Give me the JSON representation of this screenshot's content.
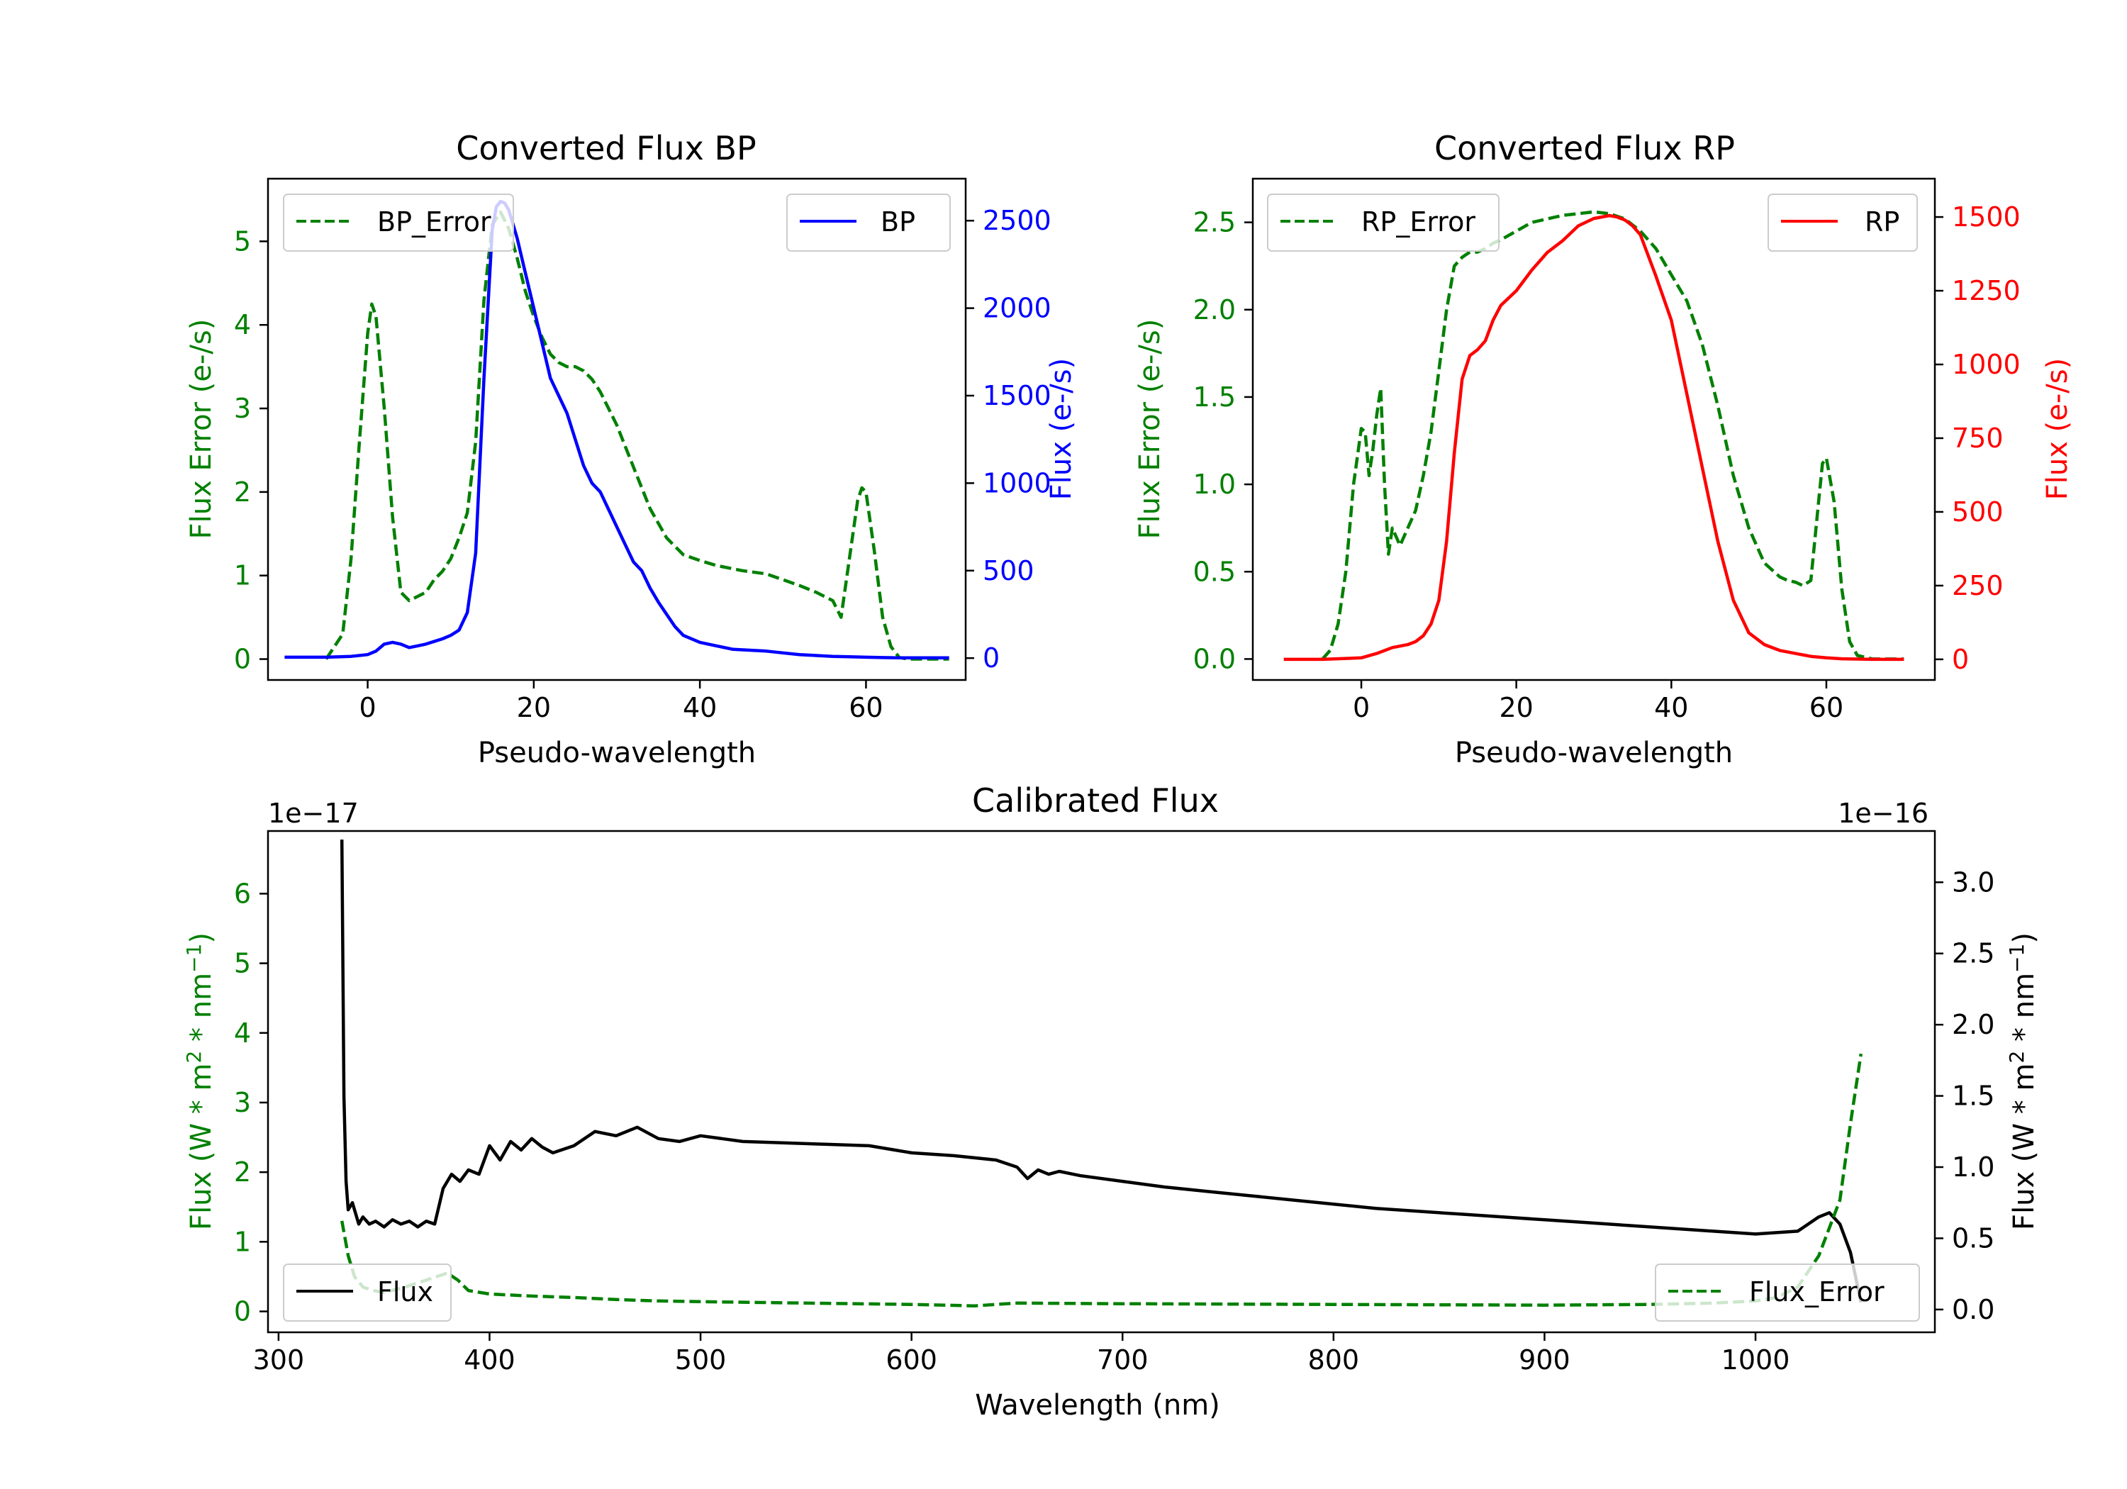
{
  "chart_data": [
    {
      "id": "bp",
      "type": "line",
      "title": "Converted Flux BP",
      "xlabel": "Pseudo-wavelength",
      "ylabel_left": "Flux Error (e-/s)",
      "ylabel_right": "Flux (e-/s)",
      "xlim": [
        -12,
        72
      ],
      "ylim_left": [
        -0.25,
        5.75
      ],
      "ylim_right": [
        -125,
        2740
      ],
      "xticks": [
        0,
        20,
        40,
        60
      ],
      "yticks_left": [
        0,
        1,
        2,
        3,
        4,
        5
      ],
      "yticks_right": [
        0,
        500,
        1000,
        1500,
        2000,
        2500
      ],
      "left_color": "#008000",
      "right_color": "#0000ff",
      "series": [
        {
          "name": "BP_Error",
          "axis": "left",
          "style": "dashed",
          "color": "#008000",
          "legend": "top-left",
          "x": [
            -5,
            -3,
            -2,
            -1,
            0,
            0.5,
            1,
            2,
            3,
            4,
            5,
            6,
            7,
            8,
            9,
            10,
            11,
            12,
            13,
            14,
            15,
            16,
            17,
            18,
            19,
            20,
            21,
            22,
            23,
            24,
            25,
            26,
            27,
            28,
            29,
            30,
            31,
            32,
            34,
            36,
            38,
            40,
            42,
            45,
            48,
            50,
            52,
            54,
            56,
            57,
            58,
            59,
            59.5,
            60,
            61,
            62,
            63,
            64,
            65,
            67,
            70
          ],
          "y": [
            0.0,
            0.3,
            1.2,
            2.6,
            3.9,
            4.25,
            4.1,
            3.0,
            1.7,
            0.8,
            0.7,
            0.75,
            0.8,
            0.95,
            1.05,
            1.2,
            1.45,
            1.75,
            2.6,
            4.3,
            5.2,
            5.35,
            5.15,
            4.8,
            4.4,
            4.1,
            3.85,
            3.65,
            3.55,
            3.5,
            3.5,
            3.45,
            3.35,
            3.2,
            3.0,
            2.8,
            2.55,
            2.3,
            1.8,
            1.45,
            1.25,
            1.18,
            1.12,
            1.06,
            1.02,
            0.95,
            0.88,
            0.8,
            0.7,
            0.5,
            1.2,
            1.9,
            2.05,
            2.0,
            1.3,
            0.5,
            0.15,
            0.02,
            0.0,
            0.0,
            0.0
          ]
        },
        {
          "name": "BP",
          "axis": "right",
          "style": "solid",
          "color": "#0000ff",
          "legend": "top-right",
          "x": [
            -10,
            -5,
            -2,
            0,
            1,
            2,
            3,
            4,
            5,
            6,
            7,
            8,
            9,
            10,
            11,
            12,
            13,
            14,
            15,
            15.5,
            16,
            16.5,
            17,
            18,
            19,
            20,
            21,
            22,
            23,
            24,
            25,
            26,
            27,
            28,
            29,
            30,
            31,
            32,
            33,
            34,
            35,
            36,
            37,
            38,
            40,
            42,
            44,
            46,
            48,
            50,
            52,
            54,
            56,
            58,
            60,
            62,
            64,
            66,
            68,
            70
          ],
          "y": [
            5,
            5,
            10,
            20,
            40,
            80,
            90,
            80,
            60,
            70,
            80,
            95,
            110,
            130,
            160,
            260,
            600,
            1600,
            2450,
            2580,
            2610,
            2600,
            2560,
            2400,
            2200,
            2000,
            1800,
            1600,
            1500,
            1400,
            1250,
            1100,
            1000,
            950,
            850,
            750,
            650,
            550,
            500,
            400,
            320,
            250,
            180,
            130,
            90,
            70,
            50,
            45,
            40,
            30,
            20,
            15,
            10,
            8,
            5,
            3,
            2,
            2,
            2,
            2
          ]
        }
      ]
    },
    {
      "id": "rp",
      "type": "line",
      "title": "Converted Flux RP",
      "xlabel": "Pseudo-wavelength",
      "ylabel_left": "Flux Error (e-/s)",
      "ylabel_right": "Flux (e-/s)",
      "xlim": [
        -14,
        74
      ],
      "ylim_left": [
        -0.12,
        2.75
      ],
      "ylim_right": [
        -70,
        1630
      ],
      "xticks": [
        0,
        20,
        40,
        60
      ],
      "yticks_left": [
        0.0,
        0.5,
        1.0,
        1.5,
        2.0,
        2.5
      ],
      "yticks_right": [
        0,
        250,
        500,
        750,
        1000,
        1250,
        1500
      ],
      "left_color": "#008000",
      "right_color": "#ff0000",
      "series": [
        {
          "name": "RP_Error",
          "axis": "left",
          "style": "dashed",
          "color": "#008000",
          "legend": "top-left",
          "x": [
            -5,
            -4,
            -3,
            -2,
            -1,
            0,
            0.5,
            1,
            1.5,
            2,
            2.5,
            3,
            3.5,
            4,
            4.5,
            5,
            6,
            7,
            8,
            9,
            10,
            11,
            12,
            13,
            14,
            15,
            16,
            17,
            18,
            20,
            22,
            24,
            26,
            28,
            30,
            32,
            34,
            36,
            38,
            40,
            42,
            44,
            46,
            48,
            50,
            52,
            54,
            55,
            56,
            57,
            58,
            59,
            59.5,
            60,
            61,
            62,
            63,
            64,
            66,
            70
          ],
          "y": [
            0.0,
            0.05,
            0.2,
            0.5,
            1.0,
            1.32,
            1.3,
            1.05,
            1.2,
            1.4,
            1.55,
            1.0,
            0.6,
            0.75,
            0.7,
            0.65,
            0.75,
            0.85,
            1.05,
            1.3,
            1.65,
            2.0,
            2.25,
            2.3,
            2.33,
            2.33,
            2.35,
            2.38,
            2.4,
            2.45,
            2.5,
            2.52,
            2.54,
            2.55,
            2.56,
            2.55,
            2.52,
            2.45,
            2.35,
            2.2,
            2.05,
            1.8,
            1.45,
            1.05,
            0.75,
            0.55,
            0.47,
            0.45,
            0.44,
            0.42,
            0.45,
            0.9,
            1.12,
            1.15,
            0.9,
            0.4,
            0.1,
            0.02,
            0.0,
            0.0
          ]
        },
        {
          "name": "RP",
          "axis": "right",
          "style": "solid",
          "color": "#ff0000",
          "legend": "top-right",
          "x": [
            -10,
            -5,
            0,
            2,
            4,
            6,
            7,
            8,
            9,
            10,
            11,
            12,
            13,
            14,
            15,
            16,
            17,
            18,
            20,
            22,
            24,
            26,
            28,
            30,
            31,
            32,
            33,
            34,
            35,
            36,
            38,
            40,
            42,
            44,
            46,
            48,
            50,
            52,
            54,
            56,
            58,
            60,
            62,
            64,
            66,
            70
          ],
          "y": [
            0,
            0,
            5,
            20,
            40,
            50,
            60,
            80,
            120,
            200,
            400,
            700,
            950,
            1030,
            1050,
            1080,
            1150,
            1200,
            1250,
            1320,
            1380,
            1420,
            1470,
            1495,
            1500,
            1505,
            1500,
            1490,
            1470,
            1440,
            1300,
            1150,
            900,
            650,
            400,
            200,
            90,
            50,
            30,
            20,
            10,
            5,
            2,
            1,
            0,
            0
          ]
        }
      ]
    },
    {
      "id": "cal",
      "type": "line",
      "title": "Calibrated Flux",
      "xlabel": "Wavelength (nm)",
      "ylabel_left": "Flux (W * m$^2$ * nm$^{-1}$)",
      "ylabel_right": "Flux (W * m$^2$ * nm$^{-1}$)",
      "left_offset": "1e−17",
      "right_offset": "1e−16",
      "xlim": [
        295,
        1085
      ],
      "ylim_left": [
        -0.3,
        6.9
      ],
      "ylim_right": [
        -0.16,
        3.36
      ],
      "xticks": [
        300,
        400,
        500,
        600,
        700,
        800,
        900,
        1000
      ],
      "yticks_left": [
        0,
        1,
        2,
        3,
        4,
        5,
        6
      ],
      "yticks_right": [
        0.0,
        0.5,
        1.0,
        1.5,
        2.0,
        2.5,
        3.0
      ],
      "left_color": "#008000",
      "right_color": "#000000",
      "series": [
        {
          "name": "Flux",
          "axis": "right",
          "style": "solid",
          "color": "#000000",
          "legend": "bottom-left",
          "x": [
            330,
            331,
            332,
            333,
            335,
            338,
            340,
            343,
            346,
            350,
            354,
            358,
            362,
            366,
            370,
            374,
            378,
            382,
            386,
            390,
            395,
            400,
            405,
            410,
            415,
            420,
            425,
            430,
            440,
            450,
            460,
            470,
            480,
            490,
            500,
            510,
            520,
            540,
            560,
            580,
            600,
            620,
            640,
            650,
            655,
            660,
            665,
            670,
            680,
            700,
            720,
            740,
            760,
            780,
            800,
            820,
            840,
            860,
            880,
            900,
            920,
            940,
            960,
            980,
            1000,
            1020,
            1030,
            1035,
            1040,
            1045,
            1050
          ],
          "y": [
            3.3,
            1.5,
            0.9,
            0.7,
            0.75,
            0.6,
            0.65,
            0.6,
            0.62,
            0.58,
            0.63,
            0.6,
            0.62,
            0.58,
            0.62,
            0.6,
            0.85,
            0.95,
            0.9,
            0.98,
            0.95,
            1.15,
            1.05,
            1.18,
            1.12,
            1.2,
            1.14,
            1.1,
            1.15,
            1.25,
            1.22,
            1.28,
            1.2,
            1.18,
            1.22,
            1.2,
            1.18,
            1.17,
            1.16,
            1.15,
            1.1,
            1.08,
            1.05,
            1.0,
            0.92,
            0.98,
            0.95,
            0.97,
            0.94,
            0.9,
            0.86,
            0.83,
            0.8,
            0.77,
            0.74,
            0.71,
            0.69,
            0.67,
            0.65,
            0.63,
            0.61,
            0.59,
            0.57,
            0.55,
            0.53,
            0.55,
            0.65,
            0.68,
            0.6,
            0.4,
            0.05
          ]
        },
        {
          "name": "Flux_Error",
          "axis": "left",
          "style": "dashed",
          "color": "#008000",
          "legend": "bottom-right",
          "x": [
            330,
            333,
            336,
            340,
            345,
            350,
            360,
            370,
            380,
            385,
            390,
            400,
            420,
            440,
            460,
            480,
            500,
            550,
            600,
            630,
            640,
            650,
            700,
            800,
            900,
            950,
            980,
            1000,
            1010,
            1020,
            1030,
            1040,
            1045,
            1050
          ],
          "y": [
            1.3,
            0.8,
            0.5,
            0.35,
            0.3,
            0.27,
            0.35,
            0.45,
            0.55,
            0.45,
            0.3,
            0.25,
            0.22,
            0.2,
            0.17,
            0.15,
            0.14,
            0.12,
            0.1,
            0.08,
            0.1,
            0.12,
            0.11,
            0.1,
            0.09,
            0.1,
            0.12,
            0.15,
            0.2,
            0.35,
            0.8,
            1.6,
            2.7,
            3.7
          ]
        }
      ]
    }
  ]
}
